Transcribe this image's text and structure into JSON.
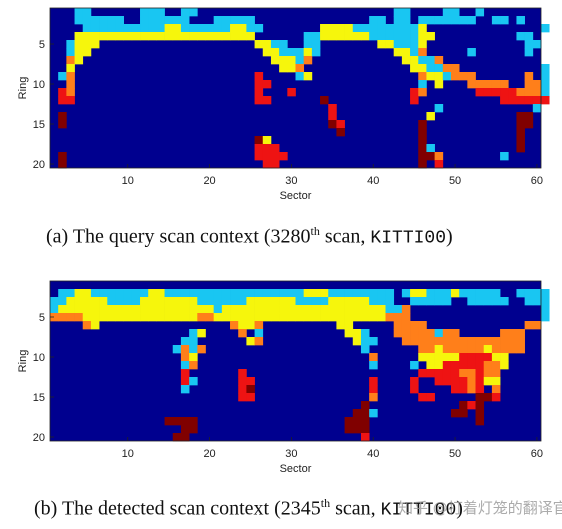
{
  "chart_data": [
    {
      "type": "heatmap",
      "xlabel": "Sector",
      "ylabel": "Ring",
      "xlim": [
        0.5,
        60.5
      ],
      "ylim": [
        20.5,
        0.5
      ],
      "xticks": [
        "10",
        "20",
        "30",
        "40",
        "50",
        "60"
      ],
      "yticks": [
        "5",
        "10",
        "15",
        "20"
      ],
      "colormap": "jet",
      "caption": {
        "prefix": "(a) The query scan context (3280",
        "sup": "th",
        "mid": " scan, ",
        "mono": "KITTI00",
        "suffix": ")"
      },
      "rows": [
        "BBBCCBBBBBBCCCBBCCBBBBBBBBBBBBBBBBBBBBBBBBCCBBBBCCBBCBBBBBBB",
        "BBBCCCCCCBBCCCCCCBBBCCCCCBBBBBBBBBBBBBBCCBCCBCCCCCCCBBCCBCBB",
        "BBBBCCCCCCCCCCYYCCCCCCYYCCBBBBBBBYYYYCCCCCCCCYBBBBBBBBBBBBBBC",
        "BBBYYYYYYYYYYYYYYYYYYYYYYBBBBBBCCYYYYYYCCCCCCYYBBBBBBBBBBCCBB",
        "BBCYYYBBBBBBBBBBBBBBBBBBBYYCCBBCCBBBBBBBYYCCCYBBBBBBBBBBBBCCB",
        "BBCYYBBBBBBBBBBBBBBBBBBBBBYYCCCYCBBBBBBBBBYYCOBBBBBCBBBBBBCBB",
        "BBOYBBBBBBBBBBBBBBBBBBBBBBBYYYCOBBBBBBBBBBBYYCCOBBBBBBBBBBBBB",
        "BBYBBBBBBBBBBBBBBBBBBBBBBBBBYYOBBBBBBBBBBBBBYYCCOOBBBBBBBBBBC",
        "BCOBBBBBBBBBBBBBBBBBBBBBBRBBBBCYBBBBBBBBBBBBBOYYCOOOBBBBBBOBC",
        "BBOBBBBBBBBBBBBBBBBBBBBBBRRBBBBBBBBBBBBBBBBBBCBYBBBOOOOOBBOOC",
        "BROBBBBBBBBBBBBBBBBBBBBBBRBBBRBBBBBBBBBBBBBBROBBBBBBRRRRROOOC",
        "BRRBBBBBBBBBBBBBBBBBBBBBBRRBBBBBBDBBBBBBBBBBRBBBBBBBBBBRRRRRR",
        "BBBBBBBBBBBBBBBBBBBBBBBBBBBBBBBBBBRBBBBBBBBBBBBCBBBBBBBBBBBCB",
        "BDBBBBBBBBBBBBBBBBBBBBBBBBBBBBBBBBRBBBBBBBBBBBYBBBBBBBBBBDDBB",
        "BDBBBBBBBBBBBBBBBBBBBBBBBBBBBBBBBBDRBBBBBBBBBDBBBBBBBBBBBDDBB",
        "BBBBBBBBBBBBBBBBBBBBBBBBBBBBBBBBBBBDBBBBBBBBBDBBBBBBBBBBBDBBB",
        "BBBBBBBBBBBBBBBBBBBBBBBBBDYBBBBBBBBBBBBBBBBBBDBBBBBBBBBBBDBBB",
        "BBBBBBBBBBBBBBBBBBBBBBBBBRRRBBBBBBBBBBBBBBBBBDCBBBBBBBBBBDBBB",
        "BDBBBBBBBBBBBBBBBBBBBBBBBRRRRBBBBBBBBBBBBBBBBDDOBBBBBBBCBBBBB",
        "BDBBBBBBBBBBBBBBBBBBBBBBBBRRBBBBBBBBBBBBBBBBBDBRBBBBBBBBBBBBB"
      ]
    },
    {
      "type": "heatmap",
      "xlabel": "Sector",
      "ylabel": "Ring",
      "xlim": [
        0.5,
        60.5
      ],
      "ylim": [
        20.5,
        0.5
      ],
      "xticks": [
        "10",
        "20",
        "30",
        "40",
        "50",
        "60"
      ],
      "yticks": [
        "5",
        "10",
        "15",
        "20"
      ],
      "colormap": "jet",
      "caption": {
        "prefix": "(b) The detected scan context (2345",
        "sup": "th",
        "mid": " scan, ",
        "mono": "KITTI00",
        "suffix": ")"
      },
      "rows": [
        "BBBBBBBBBBBBBBBBBBBBBBBBBBBBBBBBBBBBBBBBBBBBBBBBBBBBBBBBBBBB",
        "BCCYYCCCCCCCYYCCCCCCCCCCCCCCCCCYYYCCCCCCCCBCYYCCCYCCCCCBBCCCC",
        "CCYYYYYCCCCYYYYYYYCCCCCCYYYYYYCCCCYYYYYCCCBBCCCCCBBCCCCCBBCCC",
        "CYYYYYYYYYYYYYYYYYYYCYYYYYYYYYYYYYYYYYYYYCCOBBBBBBBBBBBBBBBBC",
        "OOOOYYYYYYYYYYYYYYOOYYYYYYYYYYYYYYYYYYYYYOOOBBBBBBBBBBBBBBBBC",
        "BBBBOYBBBBBBBBBBBBBBBBOYYOBBBBBBBBBYYBBBBBOOOOBBBBBBBBBBBBOOB",
        "BBBBBBBBBBBBBBBBBCYBBBBOBCBBBBBBBBBBYYCBBBOOOOOCOOBBBBBOOOBBB",
        "BBBBBBBBBBBBBBBBCCBBBBBBYOBBBBBBBBBBBYCCBBBOOOOOOOOOOOOOOOBBB",
        "BBBBBBBBBBBBBBBCOCOBBBBBBBBBBBBBBBBBBBCBBBBBBOOYOOOOOYOOOOBBB",
        "BBBBBBBBBBBBBBBBOYBBBBBBBBBBBBBBBBBBBBBOBBBBBYYYYYRRRRYYBBBBB",
        "BBBBBBBBBBBBBBBBCOBBBBBBBBBBBBBBBBBBBBBCBBBBCBYYRRRRROOYBBBBB",
        "BBBBBBBBBBBBBBBBRBBBBBBRBBBBBBBBBBBBBBBBBBBBBRRRRROOROOBBBBBB",
        "BBBBBBBBBBBBBBBBRCBBBBBRRBBBBBBBBBBBBBBRBBBBRBBRRRRORYYBBBBBB",
        "BBBBBBBBBBBBBBBBCBBBBBBRDBBBBBBBBBBBBBBRBBBBRBBBBRRORBOBBBBBB",
        "BBBBBBBBBBBBBBBBBBBBBBBRRBBBBBBBBBBBBBBOBBBBBRRBBBBBDDRBBBBBB",
        "BBBBBBBBBBBBBBBBBBBBBBBBBBBBBBBBBBBBBBDBBBBBBBBBBBDRDBBBBBBBB",
        "BBBBBBBBBBBBBBBBBBBBBBBBBBBBBBBBBBBBBDDCBBBBBBBBBDDBDBBBBBBBB",
        "BBBBBBBBBBBBBBDDDDBBBBBBBBBBBBBBBBBBDDDBBBBBBBBBBBBBDBBBBBBBB",
        "BBBBBBBBBBBBBBBBDDBBBBBBBBBBBBBBBBBBDDDBBBBBBBBBBBBBBBBBBBBBB",
        "BBBBBBBBBBBBBBBDDBBBBBBBBBBBBBBBBBBBBBRBBBBBBBBBBBBBBBBBBBBBB"
      ]
    }
  ],
  "palette": {
    "B": "#00008f",
    "C": "#19c6f2",
    "Y": "#f6f60c",
    "O": "#ff7f1a",
    "R": "#ee1313",
    "D": "#800000"
  },
  "watermark": "知乎 @打着灯笼的翻译官"
}
